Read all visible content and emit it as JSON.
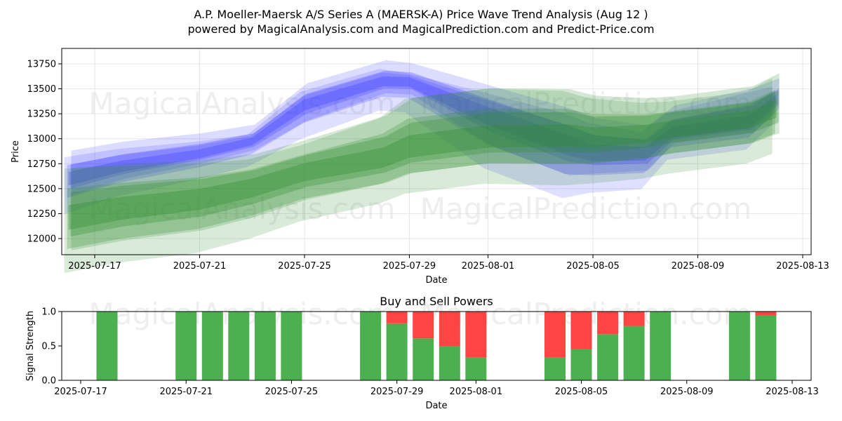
{
  "header": {
    "title_line1": "A.P. Moeller-Maersk A/S Series A (MAERSK-A) Price Wave Trend Analysis (Aug 12 )",
    "title_line2": "powered by MagicalAnalysis.com and MagicalPrediction.com and Predict-Price.com"
  },
  "watermarks": {
    "left": "MagicalAnalysis.com",
    "right": "MagicalPrediction.com"
  },
  "colors": {
    "blue_band": "#3b3bff",
    "green_band": "#2e8b2e",
    "buy": "#4caf50",
    "sell": "#ff4444",
    "grid": "#e6e6e6"
  },
  "chart_data": [
    {
      "type": "area",
      "title": "",
      "xlabel": "Date",
      "ylabel": "Price",
      "x_ticks": [
        "2025-07-17",
        "2025-07-21",
        "2025-07-25",
        "2025-07-29",
        "2025-08-01",
        "2025-08-05",
        "2025-08-09",
        "2025-08-13"
      ],
      "y_ticks": [
        12000,
        12250,
        12500,
        12750,
        13000,
        13250,
        13500,
        13750
      ],
      "xlim": [
        "2025-07-15",
        "2025-08-13"
      ],
      "ylim": [
        11850,
        13900
      ],
      "grid": true,
      "series": [
        {
          "color": "blue",
          "x": [
            "2025-07-16",
            "2025-07-18",
            "2025-07-21",
            "2025-07-23",
            "2025-07-25",
            "2025-07-28",
            "2025-07-29",
            "2025-08-01",
            "2025-08-04",
            "2025-08-05",
            "2025-08-07",
            "2025-08-08",
            "2025-08-11",
            "2025-08-12"
          ],
          "upper": [
            12750,
            12850,
            12950,
            13050,
            13450,
            13680,
            13660,
            13400,
            13150,
            13050,
            13000,
            13200,
            13350,
            13500
          ],
          "center": [
            12600,
            12720,
            12850,
            12980,
            13350,
            13580,
            13580,
            13250,
            12950,
            12850,
            12850,
            13050,
            13150,
            13400
          ],
          "lower": [
            12450,
            12600,
            12750,
            12880,
            13200,
            13460,
            13450,
            13000,
            12700,
            12680,
            12700,
            12950,
            13050,
            13300
          ]
        },
        {
          "color": "green",
          "x": [
            "2025-07-16",
            "2025-07-18",
            "2025-07-21",
            "2025-07-23",
            "2025-07-25",
            "2025-07-28",
            "2025-07-29",
            "2025-08-01",
            "2025-08-04",
            "2025-08-05",
            "2025-08-07",
            "2025-08-08",
            "2025-08-11",
            "2025-08-12"
          ],
          "upper": [
            12500,
            12560,
            12620,
            12700,
            12850,
            13050,
            13200,
            13300,
            13300,
            13250,
            13250,
            13280,
            13380,
            13500
          ],
          "center": [
            12200,
            12300,
            12400,
            12520,
            12680,
            12800,
            12900,
            13000,
            13020,
            13000,
            13050,
            13100,
            13200,
            13300
          ],
          "lower": [
            11950,
            12050,
            12150,
            12280,
            12450,
            12600,
            12700,
            12800,
            12800,
            12800,
            12850,
            12900,
            13000,
            13100
          ]
        }
      ]
    },
    {
      "type": "bar",
      "title": "Buy and Sell Powers",
      "xlabel": "Date",
      "ylabel": "Signal Strength",
      "x_ticks": [
        "2025-07-17",
        "2025-07-21",
        "2025-07-25",
        "2025-07-29",
        "2025-08-01",
        "2025-08-05",
        "2025-08-09",
        "2025-08-13"
      ],
      "y_ticks": [
        0.0,
        0.5,
        1.0
      ],
      "ylim": [
        0,
        1
      ],
      "xlim": [
        "2025-07-15",
        "2025-08-13"
      ],
      "series": [
        {
          "name": "buy",
          "x": [
            "2025-07-18",
            "2025-07-21",
            "2025-07-22",
            "2025-07-23",
            "2025-07-24",
            "2025-07-25",
            "2025-07-28",
            "2025-07-29",
            "2025-07-30",
            "2025-07-31",
            "2025-08-01",
            "2025-08-04",
            "2025-08-05",
            "2025-08-06",
            "2025-08-07",
            "2025-08-08",
            "2025-08-11",
            "2025-08-12"
          ],
          "values": [
            1.0,
            1.0,
            1.0,
            1.0,
            1.0,
            1.0,
            1.0,
            0.83,
            0.61,
            0.5,
            0.33,
            0.33,
            0.45,
            0.67,
            0.79,
            1.0,
            1.0,
            0.94
          ]
        },
        {
          "name": "sell",
          "x": [
            "2025-07-18",
            "2025-07-21",
            "2025-07-22",
            "2025-07-23",
            "2025-07-24",
            "2025-07-25",
            "2025-07-28",
            "2025-07-29",
            "2025-07-30",
            "2025-07-31",
            "2025-08-01",
            "2025-08-04",
            "2025-08-05",
            "2025-08-06",
            "2025-08-07",
            "2025-08-08",
            "2025-08-11",
            "2025-08-12"
          ],
          "values": [
            0.0,
            0.0,
            0.0,
            0.0,
            0.0,
            0.0,
            0.0,
            0.17,
            0.39,
            0.5,
            0.67,
            0.67,
            0.55,
            0.33,
            0.21,
            0.0,
            0.0,
            0.06
          ]
        }
      ]
    }
  ]
}
